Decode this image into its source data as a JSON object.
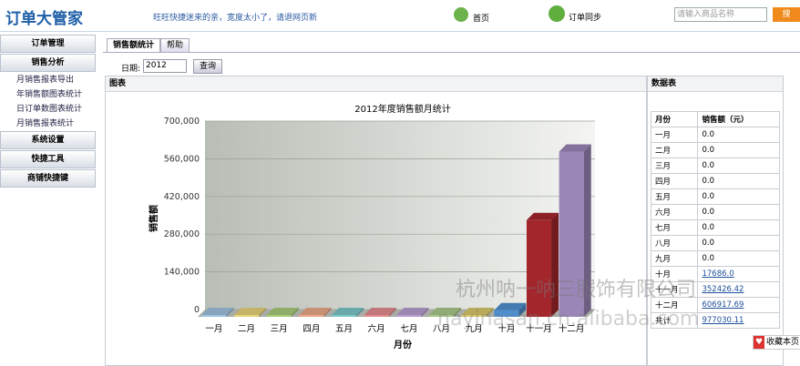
{
  "header": {
    "logo": "订单大管家",
    "notice": "旺旺快捷迷来的亲，宽度太小了，请退网页新",
    "home": "首页",
    "sync": "订单同步",
    "search_placeholder": "请输入商品名称",
    "search_button": "搜"
  },
  "sidebar": [
    {
      "title": "订单管理"
    },
    {
      "title": "销售分析",
      "items": [
        "月销售报表导出",
        "年销售额图表统计",
        "日订单数图表统计",
        "月销售报表统计"
      ]
    },
    {
      "title": "系统设置"
    },
    {
      "title": "快捷工具"
    },
    {
      "title": "商铺快捷键"
    }
  ],
  "tabs": [
    "销售额统计",
    "帮助"
  ],
  "filter": {
    "label": "日期:",
    "year": "2012",
    "button": "查询"
  },
  "panels": {
    "chart": "图表",
    "table": "数据表"
  },
  "chart_data": {
    "type": "bar",
    "title": "2012年度销售额月统计",
    "x_label": "月份",
    "y_label": "销售额",
    "categories": [
      "一月",
      "二月",
      "三月",
      "四月",
      "五月",
      "六月",
      "七月",
      "八月",
      "九月",
      "十月",
      "十一月",
      "十二月"
    ],
    "values": [
      0,
      0,
      0,
      0,
      0,
      0,
      0,
      0,
      0,
      17686,
      352426.42,
      606917.69
    ],
    "value_labels": [
      "0.0",
      "0.0",
      "0.0",
      "0.0",
      "0.0",
      "0.0",
      "0.0",
      "0.0",
      "0.0",
      "17686.0",
      "352426.42",
      "606917.69"
    ],
    "colors": [
      "#9fc3e0",
      "#e8d27a",
      "#a8cc7a",
      "#eaa98a",
      "#7cc7c9",
      "#e48d8f",
      "#b79ed1",
      "#a9c98a",
      "#d8c86a",
      "#4f8fd0",
      "#a3262d",
      "#9b86b8"
    ],
    "ylim": [
      0,
      700000
    ],
    "yticks": [
      0,
      {
        "value": 140000,
        "label": "140,000"
      },
      {
        "value": 280000,
        "label": "280,000"
      },
      {
        "value": 420000,
        "label": "420,000"
      },
      {
        "value": 560000,
        "label": "560,000"
      },
      {
        "value": 700000,
        "label": "700,000"
      }
    ],
    "grid": true
  },
  "table": {
    "headers": [
      "月份",
      "销售额（元）"
    ],
    "total_label": "共计",
    "total": "977030.11"
  },
  "watermark": {
    "company": "杭州呐一呐三服饰有限公司",
    "site": "nayinasan.cn.alibaba.com"
  },
  "bookmark": "收藏本页"
}
